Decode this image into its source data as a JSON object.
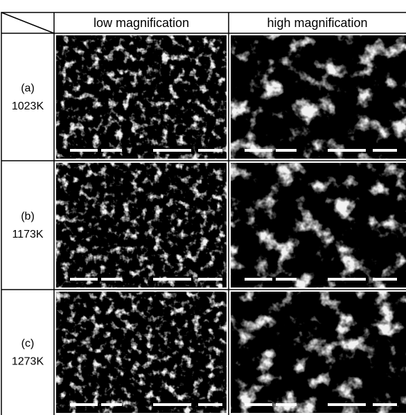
{
  "table": {
    "header": [
      "low magnification",
      "high magnification"
    ],
    "rows": [
      {
        "label": "(a)",
        "temperature": "1023K"
      },
      {
        "label": "(b)",
        "temperature": "1173K"
      },
      {
        "label": "(c)",
        "temperature": "1273K"
      }
    ]
  }
}
